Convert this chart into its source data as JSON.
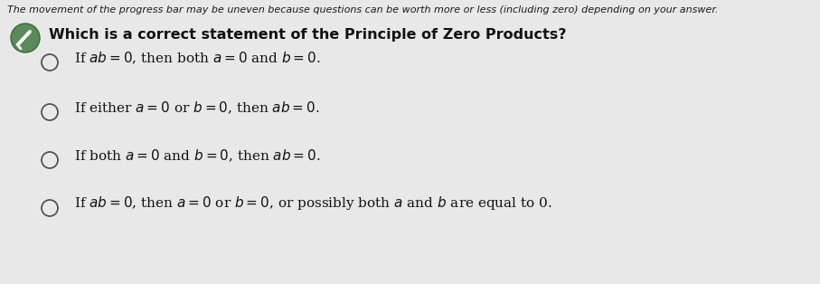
{
  "bg_color": "#e8e8e8",
  "header_text": "The movement of the progress bar may be uneven because questions can be worth more or less (including zero) depending on your answer.",
  "question_text": "Which is a correct statement of the Principle of Zero Products?",
  "options": [
    "If $ab = 0$, then both $a = 0$ and $b = 0$.",
    "If either $a = 0$ or $b = 0$, then $ab = 0$.",
    "If both $a = 0$ and $b = 0$, then $ab = 0$.",
    "If $ab = 0$, then $a = 0$ or $b = 0$, or possibly both $a$ and $b$ are equal to 0."
  ],
  "header_fontsize": 8.0,
  "question_fontsize": 11.5,
  "option_fontsize": 11.0,
  "header_color": "#1a1a1a",
  "question_color": "#111111",
  "option_color": "#111111",
  "icon_circle_color": "#5a8a5a",
  "radio_edge_color": "#555555",
  "radio_fill": "#e8e8e8"
}
